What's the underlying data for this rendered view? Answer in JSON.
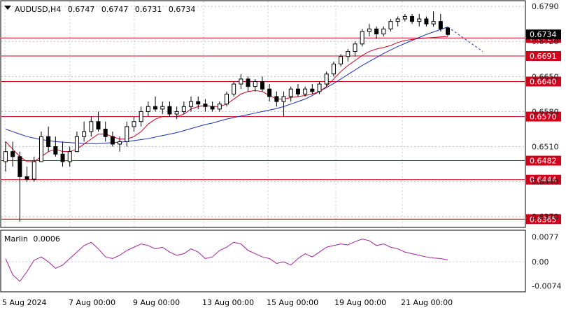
{
  "header": {
    "symbol": "AUDUSD,H4",
    "open": "0.6747",
    "high": "0.6747",
    "low": "0.6731",
    "close": "0.6734"
  },
  "indicator": {
    "name": "Marlin",
    "value": "0.0006",
    "axis_labels": [
      "0.0077",
      "0.00",
      "-0.0074"
    ]
  },
  "price_axis": {
    "ticks": [
      "0.6790",
      "0.6720",
      "0.6650",
      "0.6580",
      "0.6510",
      "0.6440",
      "0.6370"
    ],
    "current_price": "0.6734"
  },
  "levels": {
    "values": [
      "0.6727",
      "0.6691",
      "0.6640",
      "0.6570",
      "0.6482",
      "0.6444",
      "0.6365"
    ],
    "color": "#d0021b"
  },
  "time_axis": {
    "labels": [
      "5 Aug 2024",
      "7 Aug 00:00",
      "9 Aug 00:00",
      "13 Aug 00:00",
      "15 Aug 00:00",
      "19 Aug 00:00",
      "21 Aug 00:00"
    ]
  },
  "colors": {
    "ma_fast": "#d0021b",
    "ma_slow": "#1a2fb8",
    "oscillator": "#a020a0",
    "level": "#d0021b"
  },
  "chart_data": {
    "type": "candlestick",
    "ylim": [
      0.635,
      0.68
    ],
    "ohlc": [
      [
        0.648,
        0.652,
        0.646,
        0.65
      ],
      [
        0.65,
        0.652,
        0.647,
        0.649
      ],
      [
        0.649,
        0.65,
        0.636,
        0.645
      ],
      [
        0.645,
        0.647,
        0.644,
        0.6445
      ],
      [
        0.6445,
        0.649,
        0.644,
        0.648
      ],
      [
        0.648,
        0.654,
        0.648,
        0.653
      ],
      [
        0.653,
        0.655,
        0.65,
        0.651
      ],
      [
        0.651,
        0.653,
        0.649,
        0.6495
      ],
      [
        0.6495,
        0.652,
        0.647,
        0.648
      ],
      [
        0.648,
        0.651,
        0.647,
        0.65
      ],
      [
        0.65,
        0.654,
        0.65,
        0.653
      ],
      [
        0.653,
        0.656,
        0.652,
        0.654
      ],
      [
        0.654,
        0.657,
        0.653,
        0.656
      ],
      [
        0.656,
        0.658,
        0.654,
        0.6545
      ],
      [
        0.6545,
        0.656,
        0.652,
        0.653
      ],
      [
        0.653,
        0.654,
        0.651,
        0.6515
      ],
      [
        0.6515,
        0.653,
        0.65,
        0.652
      ],
      [
        0.652,
        0.656,
        0.651,
        0.655
      ],
      [
        0.655,
        0.657,
        0.654,
        0.656
      ],
      [
        0.656,
        0.659,
        0.655,
        0.658
      ],
      [
        0.658,
        0.66,
        0.657,
        0.659
      ],
      [
        0.659,
        0.661,
        0.658,
        0.6585
      ],
      [
        0.6585,
        0.66,
        0.6575,
        0.659
      ],
      [
        0.659,
        0.66,
        0.657,
        0.6575
      ],
      [
        0.6575,
        0.659,
        0.6565,
        0.658
      ],
      [
        0.658,
        0.66,
        0.6575,
        0.659
      ],
      [
        0.659,
        0.661,
        0.658,
        0.66
      ],
      [
        0.66,
        0.661,
        0.6585,
        0.6595
      ],
      [
        0.6595,
        0.6605,
        0.658,
        0.659
      ],
      [
        0.659,
        0.66,
        0.658,
        0.6585
      ],
      [
        0.6585,
        0.66,
        0.658,
        0.6595
      ],
      [
        0.6595,
        0.662,
        0.659,
        0.6615
      ],
      [
        0.6615,
        0.664,
        0.661,
        0.6635
      ],
      [
        0.6635,
        0.6655,
        0.6625,
        0.6645
      ],
      [
        0.6645,
        0.665,
        0.662,
        0.663
      ],
      [
        0.663,
        0.6645,
        0.662,
        0.664
      ],
      [
        0.664,
        0.665,
        0.662,
        0.6625
      ],
      [
        0.6625,
        0.6635,
        0.66,
        0.661
      ],
      [
        0.661,
        0.662,
        0.659,
        0.66
      ],
      [
        0.66,
        0.662,
        0.657,
        0.661
      ],
      [
        0.661,
        0.663,
        0.66,
        0.6625
      ],
      [
        0.6625,
        0.6635,
        0.661,
        0.6615
      ],
      [
        0.6615,
        0.663,
        0.661,
        0.6625
      ],
      [
        0.6625,
        0.6635,
        0.6615,
        0.662
      ],
      [
        0.662,
        0.664,
        0.6615,
        0.6635
      ],
      [
        0.6635,
        0.666,
        0.663,
        0.6655
      ],
      [
        0.6655,
        0.668,
        0.665,
        0.6675
      ],
      [
        0.6675,
        0.6695,
        0.667,
        0.669
      ],
      [
        0.669,
        0.6705,
        0.668,
        0.67
      ],
      [
        0.67,
        0.672,
        0.669,
        0.6715
      ],
      [
        0.6715,
        0.6745,
        0.671,
        0.674
      ],
      [
        0.674,
        0.6755,
        0.673,
        0.6745
      ],
      [
        0.6745,
        0.675,
        0.6725,
        0.6735
      ],
      [
        0.6735,
        0.675,
        0.673,
        0.6745
      ],
      [
        0.6745,
        0.6765,
        0.674,
        0.676
      ],
      [
        0.676,
        0.677,
        0.675,
        0.6765
      ],
      [
        0.6765,
        0.6775,
        0.676,
        0.677
      ],
      [
        0.677,
        0.6775,
        0.6755,
        0.676
      ],
      [
        0.676,
        0.6775,
        0.675,
        0.6765
      ],
      [
        0.6765,
        0.677,
        0.675,
        0.6755
      ],
      [
        0.6755,
        0.678,
        0.675,
        0.676
      ],
      [
        0.676,
        0.6775,
        0.674,
        0.6745
      ],
      [
        0.6747,
        0.6747,
        0.6731,
        0.6734
      ]
    ],
    "ma_fast": [
      0.652,
      0.6505,
      0.649,
      0.648,
      0.648,
      0.649,
      0.65,
      0.6505,
      0.65,
      0.65,
      0.6505,
      0.6515,
      0.6525,
      0.6535,
      0.6535,
      0.653,
      0.6525,
      0.6525,
      0.653,
      0.654,
      0.6555,
      0.6565,
      0.657,
      0.657,
      0.657,
      0.6575,
      0.6585,
      0.659,
      0.6592,
      0.659,
      0.659,
      0.6595,
      0.6605,
      0.6615,
      0.662,
      0.6622,
      0.662,
      0.6612,
      0.6605,
      0.6605,
      0.6608,
      0.661,
      0.6612,
      0.6615,
      0.662,
      0.663,
      0.6645,
      0.666,
      0.6672,
      0.6682,
      0.6692,
      0.67,
      0.6705,
      0.6708,
      0.6712,
      0.6718,
      0.6722,
      0.6724,
      0.6726,
      0.6727,
      0.6728,
      0.6729,
      0.673
    ],
    "ma_slow": [
      0.6545,
      0.654,
      0.6535,
      0.653,
      0.6527,
      0.6524,
      0.6522,
      0.652,
      0.6519,
      0.6518,
      0.6517,
      0.6516,
      0.6516,
      0.6516,
      0.6517,
      0.6518,
      0.6519,
      0.652,
      0.6522,
      0.6524,
      0.6526,
      0.6529,
      0.6532,
      0.6535,
      0.6538,
      0.6542,
      0.6546,
      0.655,
      0.6554,
      0.6557,
      0.6561,
      0.6565,
      0.6568,
      0.6571,
      0.6574,
      0.6577,
      0.658,
      0.6583,
      0.6586,
      0.659,
      0.6595,
      0.66,
      0.6605,
      0.6612,
      0.662,
      0.6628,
      0.6636,
      0.6645,
      0.6654,
      0.6663,
      0.6672,
      0.668,
      0.6688,
      0.6696,
      0.6703,
      0.671,
      0.6716,
      0.6722,
      0.6728,
      0.6734,
      0.6739,
      0.6744,
      0.6749
    ],
    "osc": [
      0.001,
      -0.004,
      -0.006,
      -0.003,
      0.0005,
      0.0015,
      0.0,
      -0.002,
      -0.001,
      0.001,
      0.003,
      0.005,
      0.006,
      0.004,
      0.0015,
      0.001,
      0.002,
      0.0035,
      0.0045,
      0.0055,
      0.005,
      0.004,
      0.0045,
      0.003,
      0.002,
      0.0025,
      0.004,
      0.003,
      0.001,
      0.0015,
      0.0035,
      0.0045,
      0.006,
      0.0055,
      0.0035,
      0.0025,
      0.0015,
      0.001,
      -0.0005,
      0.0,
      -0.001,
      0.001,
      0.0025,
      0.0015,
      0.003,
      0.0045,
      0.005,
      0.0055,
      0.0052,
      0.0062,
      0.007,
      0.0065,
      0.005,
      0.0055,
      0.0045,
      0.004,
      0.003,
      0.0025,
      0.002,
      0.0015,
      0.0012,
      0.001,
      0.0006
    ],
    "osc_ylim": [
      -0.009,
      0.0095
    ]
  }
}
